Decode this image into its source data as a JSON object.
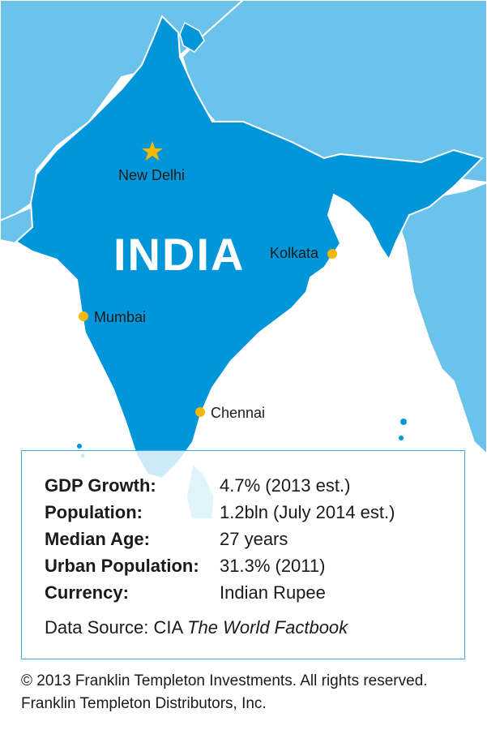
{
  "map": {
    "country_label": "INDIA",
    "cities": [
      {
        "name": "New Delhi",
        "type": "capital"
      },
      {
        "name": "Kolkata",
        "type": "city"
      },
      {
        "name": "Mumbai",
        "type": "city"
      },
      {
        "name": "Chennai",
        "type": "city"
      }
    ],
    "colors": {
      "india": "#0096d9",
      "neighbors": "#6bc2ea",
      "neighbor_border": "#ffffff",
      "sea": "#ffffff",
      "city_marker": "#f5b800",
      "box_border": "#33aee0"
    }
  },
  "stats": {
    "rows": [
      {
        "label": "GDP Growth:",
        "value": "4.7% (2013 est.)"
      },
      {
        "label": "Population:",
        "value": "1.2bln (July 2014 est.)"
      },
      {
        "label": "Median Age:",
        "value": "27 years"
      },
      {
        "label": "Urban Population:",
        "value": "31.3% (2011)"
      },
      {
        "label": "Currency:",
        "value": "Indian Rupee"
      }
    ],
    "source_prefix": "Data Source: CIA ",
    "source_title": "The World Factbook"
  },
  "footer": {
    "line1": "© 2013 Franklin Templeton Investments. All rights reserved.",
    "line2": "Franklin Templeton Distributors, Inc."
  }
}
